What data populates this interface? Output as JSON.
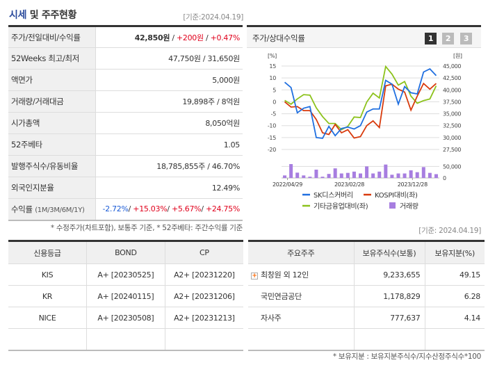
{
  "header": {
    "title_hl": "시세",
    "title_rest": " 및 주주현황",
    "as_of": "[기준:2024.04.19]"
  },
  "stock_table": [
    {
      "label": "주가/전일대비/수익률",
      "price": "42,850원",
      "sep1": " / ",
      "change": "+200원",
      "sep2": " / ",
      "pct": "+0.47%"
    },
    {
      "label": "52Weeks 최고/최저",
      "value": "47,750원 / 31,650원"
    },
    {
      "label": "액면가",
      "value": "5,000원"
    },
    {
      "label": "거래량/거래대금",
      "value": "19,898주 / 8억원"
    },
    {
      "label": "시가총액",
      "value": "8,050억원"
    },
    {
      "label": "52주베타",
      "value": "1.05"
    },
    {
      "label": "발행주식수/유동비율",
      "value": "18,785,855주 / 46.70%"
    },
    {
      "label": "외국인지분율",
      "value": "12.49%"
    },
    {
      "label": "수익률",
      "label_small": "(1M/3M/6M/1Y)",
      "r1": "-2.72%",
      "r2": "+15.03%",
      "r3": "+5.67%",
      "r4": "+24.75%"
    }
  ],
  "note1": "* 수정주가(차트포함), 보통주 기준, * 52주베타: 주간수익률 기준",
  "chart_panel": {
    "title": "주가/상대수익률",
    "pages": [
      "1",
      "2",
      "3"
    ],
    "active_page": "1"
  },
  "chart_data": {
    "type": "line",
    "left_unit": "[%]",
    "right_unit": "[원]",
    "left_ticks": [
      15,
      10,
      5,
      0,
      -5,
      -10,
      -15,
      -20
    ],
    "right_ticks": [
      "45,000",
      "42,500",
      "40,000",
      "37,500",
      "35,000",
      "32,500",
      "30,000",
      "27,500"
    ],
    "ylim_left": [
      -20,
      15
    ],
    "ylim_right": [
      27500,
      45000
    ],
    "volume_ticks": [
      "50,000",
      "0"
    ],
    "volume_ylim": [
      0,
      60000
    ],
    "x_labels": [
      "2022/04/29",
      "2023/02/28",
      "2023/12/28"
    ],
    "grid": true,
    "series": [
      {
        "name": "SK디스커버리",
        "color": "#1f6fe0",
        "values": [
          8.2,
          6,
          -4.6,
          -2.7,
          -2,
          -15,
          -15.3,
          -10.3,
          -14.2,
          -11.2,
          -10.6,
          -11.4,
          -10,
          -4.3,
          -3,
          -3,
          9,
          7.4,
          -1,
          6.4,
          3.8,
          3.3,
          12.5,
          13.8,
          11
        ]
      },
      {
        "name": "KOSPI대비(좌)",
        "color": "#d83a0c",
        "values": [
          0,
          -2.2,
          -2,
          -3.7,
          -3.7,
          -7.4,
          -13,
          -13.7,
          -9.5,
          -13,
          -11.7,
          -15.2,
          -14.6,
          -10,
          -8,
          -10.8,
          6.7,
          7.4,
          5.3,
          4.1,
          -3.5,
          2.4,
          7.7,
          5.3,
          7.7
        ]
      },
      {
        "name": "기타금융업대비(좌)",
        "color": "#8cc21c",
        "values": [
          0.6,
          -1,
          1.2,
          3,
          2.8,
          -2.5,
          -6.2,
          -9.1,
          -9.1,
          -11.7,
          -10.3,
          -6.4,
          -6.6,
          -0.1,
          3.6,
          1.6,
          14.8,
          11.6,
          7,
          8.5,
          2.4,
          -0.6,
          0.5,
          1.2,
          6.7
        ]
      }
    ],
    "volume": {
      "name": "거래량",
      "color": "#a77ee0",
      "values": [
        11000,
        60000,
        23000,
        11000,
        5500,
        36000,
        5500,
        17500,
        41500,
        19500,
        22000,
        27500,
        19500,
        50000,
        19500,
        27500,
        58000,
        14000,
        19500,
        19500,
        33000,
        25000,
        47000,
        22000,
        16500
      ]
    }
  },
  "as_of2": "[기준: 2024.04.19]",
  "credit": {
    "headers": [
      "신용등급",
      "BOND",
      "CP"
    ],
    "rows": [
      [
        "KIS",
        "A+  [20230525]",
        "A2+  [20231220]"
      ],
      [
        "KR",
        "A+  [20240115]",
        "A2+  [20231206]"
      ],
      [
        "NICE",
        "A+  [20230508]",
        "A2+  [20231213]"
      ]
    ]
  },
  "holders": {
    "headers": [
      "주요주주",
      "보유주식수(보통)",
      "보유지분(%)"
    ],
    "rows": [
      [
        "최창원 외 12인",
        "9,233,655",
        "49.15"
      ],
      [
        "국민연금공단",
        "1,178,829",
        "6.28"
      ],
      [
        "자사주",
        "777,637",
        "4.14"
      ]
    ]
  },
  "note2": "* 보유지분 : 보유지분주식수/지수산정주식수*100"
}
